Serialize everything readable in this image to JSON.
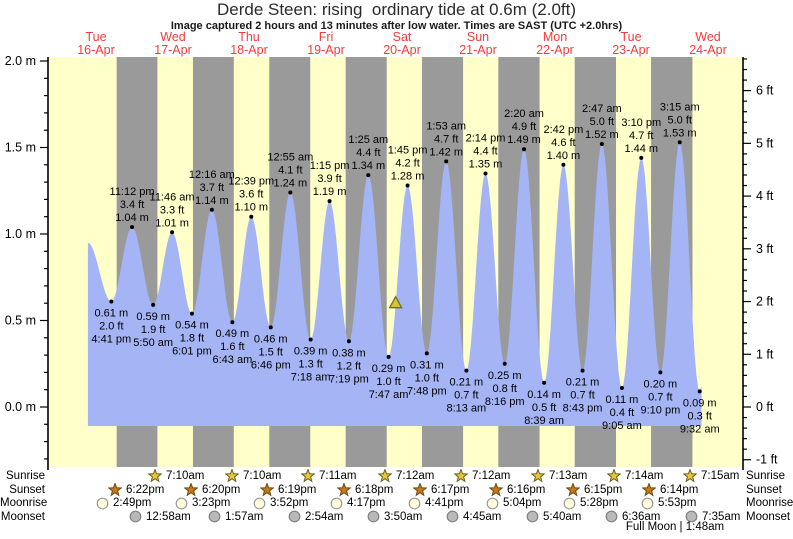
{
  "title": "Derde Steen: rising  ordinary tide at 0.6m (2.0ft)",
  "subtitle": "Image captured 2 hours and 13 minutes after low water. Times are SAST (UTC +2.0hrs)",
  "days": [
    {
      "name": "Tue",
      "date": "16-Apr"
    },
    {
      "name": "Wed",
      "date": "17-Apr"
    },
    {
      "name": "Thu",
      "date": "18-Apr"
    },
    {
      "name": "Fri",
      "date": "19-Apr"
    },
    {
      "name": "Sat",
      "date": "20-Apr"
    },
    {
      "name": "Sun",
      "date": "21-Apr"
    },
    {
      "name": "Mon",
      "date": "22-Apr"
    },
    {
      "name": "Tue",
      "date": "23-Apr"
    },
    {
      "name": "Wed",
      "date": "24-Apr"
    }
  ],
  "y_axis": {
    "left_labels": [
      "2.0 m",
      "1.5 m",
      "1.0 m",
      "0.5 m",
      "0.0 m"
    ],
    "right_labels": [
      "6 ft",
      "5 ft",
      "4 ft",
      "3 ft",
      "2 ft",
      "1 ft",
      "0 ft",
      "-1 ft"
    ]
  },
  "chart_data": {
    "type": "area",
    "series_name": "tide height",
    "units": [
      "m",
      "ft"
    ],
    "ylim_m": [
      -0.35,
      2.02
    ],
    "tides": [
      {
        "kind": "low",
        "day": 0,
        "time": "4:41 pm",
        "m": 0.61,
        "m_label": "0.61 m",
        "ft_label": "2.0 ft"
      },
      {
        "kind": "high",
        "day": 0,
        "time": "11:12 pm",
        "m": 1.04,
        "m_label": "1.04 m",
        "ft_label": "3.4 ft"
      },
      {
        "kind": "low",
        "day": 1,
        "time": "5:50 am",
        "m": 0.59,
        "m_label": "0.59 m",
        "ft_label": "1.9 ft"
      },
      {
        "kind": "high",
        "day": 1,
        "time": "11:46 am",
        "m": 1.01,
        "m_label": "1.01 m",
        "ft_label": "3.3 ft"
      },
      {
        "kind": "low",
        "day": 1,
        "time": "6:01 pm",
        "m": 0.54,
        "m_label": "0.54 m",
        "ft_label": "1.8 ft"
      },
      {
        "kind": "high",
        "day": 2,
        "time": "12:16 am",
        "m": 1.14,
        "m_label": "1.14 m",
        "ft_label": "3.7 ft"
      },
      {
        "kind": "low",
        "day": 2,
        "time": "6:43 am",
        "m": 0.49,
        "m_label": "0.49 m",
        "ft_label": "1.6 ft"
      },
      {
        "kind": "high",
        "day": 2,
        "time": "12:39 pm",
        "m": 1.1,
        "m_label": "1.10 m",
        "ft_label": "3.6 ft"
      },
      {
        "kind": "low",
        "day": 2,
        "time": "6:46 pm",
        "m": 0.46,
        "m_label": "0.46 m",
        "ft_label": "1.5 ft"
      },
      {
        "kind": "high",
        "day": 3,
        "time": "12:55 am",
        "m": 1.24,
        "m_label": "1.24 m",
        "ft_label": "4.1 ft"
      },
      {
        "kind": "low",
        "day": 3,
        "time": "7:18 am",
        "m": 0.39,
        "m_label": "0.39 m",
        "ft_label": "1.3 ft"
      },
      {
        "kind": "high",
        "day": 3,
        "time": "1:15 pm",
        "m": 1.19,
        "m_label": "1.19 m",
        "ft_label": "3.9 ft"
      },
      {
        "kind": "low",
        "day": 3,
        "time": "7:19 pm",
        "m": 0.38,
        "m_label": "0.38 m",
        "ft_label": "1.2 ft"
      },
      {
        "kind": "high",
        "day": 4,
        "time": "1:25 am",
        "m": 1.34,
        "m_label": "1.34 m",
        "ft_label": "4.4 ft"
      },
      {
        "kind": "low",
        "day": 4,
        "time": "7:47 am",
        "m": 0.29,
        "m_label": "0.29 m",
        "ft_label": "1.0 ft"
      },
      {
        "kind": "high",
        "day": 4,
        "time": "1:45 pm",
        "m": 1.28,
        "m_label": "1.28 m",
        "ft_label": "4.2 ft"
      },
      {
        "kind": "low",
        "day": 4,
        "time": "7:48 pm",
        "m": 0.31,
        "m_label": "0.31 m",
        "ft_label": "1.0 ft"
      },
      {
        "kind": "high",
        "day": 5,
        "time": "1:53 am",
        "m": 1.42,
        "m_label": "1.42 m",
        "ft_label": "4.7 ft"
      },
      {
        "kind": "low",
        "day": 5,
        "time": "8:13 am",
        "m": 0.21,
        "m_label": "0.21 m",
        "ft_label": "0.7 ft"
      },
      {
        "kind": "high",
        "day": 5,
        "time": "2:14 pm",
        "m": 1.35,
        "m_label": "1.35 m",
        "ft_label": "4.4 ft"
      },
      {
        "kind": "low",
        "day": 5,
        "time": "8:16 pm",
        "m": 0.25,
        "m_label": "0.25 m",
        "ft_label": "0.8 ft"
      },
      {
        "kind": "high",
        "day": 6,
        "time": "2:20 am",
        "m": 1.49,
        "m_label": "1.49 m",
        "ft_label": "4.9 ft"
      },
      {
        "kind": "low",
        "day": 6,
        "time": "8:39 am",
        "m": 0.14,
        "m_label": "0.14 m",
        "ft_label": "0.5 ft"
      },
      {
        "kind": "high",
        "day": 6,
        "time": "2:42 pm",
        "m": 1.4,
        "m_label": "1.40 m",
        "ft_label": "4.6 ft"
      },
      {
        "kind": "low",
        "day": 6,
        "time": "8:43 pm",
        "m": 0.21,
        "m_label": "0.21 m",
        "ft_label": "0.7 ft"
      },
      {
        "kind": "high",
        "day": 7,
        "time": "2:47 am",
        "m": 1.52,
        "m_label": "1.52 m",
        "ft_label": "5.0 ft"
      },
      {
        "kind": "low",
        "day": 7,
        "time": "9:05 am",
        "m": 0.11,
        "m_label": "0.11 m",
        "ft_label": "0.4 ft"
      },
      {
        "kind": "high",
        "day": 7,
        "time": "3:10 pm",
        "m": 1.44,
        "m_label": "1.44 m",
        "ft_label": "4.7 ft"
      },
      {
        "kind": "low",
        "day": 7,
        "time": "9:10 pm",
        "m": 0.2,
        "m_label": "0.20 m",
        "ft_label": "0.7 ft"
      },
      {
        "kind": "high",
        "day": 8,
        "time": "3:15 am",
        "m": 1.53,
        "m_label": "1.53 m",
        "ft_label": "5.0 ft"
      },
      {
        "kind": "low",
        "day": 8,
        "time": "9:32 am",
        "m": 0.09,
        "m_label": "0.09 m",
        "ft_label": "0.3 ft"
      }
    ],
    "current_marker": {
      "day": 4,
      "time": "10:00 am",
      "m": 0.6
    },
    "curve_start": {
      "day": 0,
      "time": "9:20 am",
      "m": 0.95
    },
    "curve_end": {
      "day": 8,
      "time": "10:05 am"
    }
  },
  "almanac": {
    "rows": [
      {
        "label": "Sunrise",
        "icon": "sunrise-star",
        "entries": [
          {
            "day": 1,
            "time": "7:10am"
          },
          {
            "day": 2,
            "time": "7:10am"
          },
          {
            "day": 3,
            "time": "7:11am"
          },
          {
            "day": 4,
            "time": "7:12am"
          },
          {
            "day": 5,
            "time": "7:12am"
          },
          {
            "day": 6,
            "time": "7:13am"
          },
          {
            "day": 7,
            "time": "7:14am"
          },
          {
            "day": 8,
            "time": "7:15am"
          }
        ]
      },
      {
        "label": "Sunset",
        "icon": "sunset-star",
        "entries": [
          {
            "day": 0,
            "time": "6:22pm"
          },
          {
            "day": 1,
            "time": "6:20pm"
          },
          {
            "day": 2,
            "time": "6:19pm"
          },
          {
            "day": 3,
            "time": "6:18pm"
          },
          {
            "day": 4,
            "time": "6:17pm"
          },
          {
            "day": 5,
            "time": "6:16pm"
          },
          {
            "day": 6,
            "time": "6:15pm"
          },
          {
            "day": 7,
            "time": "6:14pm"
          }
        ]
      },
      {
        "label": "Moonrise",
        "icon": "moonrise-circle",
        "entries": [
          {
            "day": 0,
            "time": "2:49pm"
          },
          {
            "day": 1,
            "time": "3:23pm"
          },
          {
            "day": 2,
            "time": "3:52pm"
          },
          {
            "day": 3,
            "time": "4:17pm"
          },
          {
            "day": 4,
            "time": "4:41pm"
          },
          {
            "day": 5,
            "time": "5:04pm"
          },
          {
            "day": 6,
            "time": "5:28pm"
          },
          {
            "day": 7,
            "time": "5:53pm"
          }
        ]
      },
      {
        "label": "Moonset",
        "icon": "moonset-circle",
        "entries": [
          {
            "day": 1,
            "time": "12:58am"
          },
          {
            "day": 2,
            "time": "1:57am"
          },
          {
            "day": 3,
            "time": "2:54am"
          },
          {
            "day": 4,
            "time": "3:50am"
          },
          {
            "day": 5,
            "time": "4:45am"
          },
          {
            "day": 6,
            "time": "5:40am"
          },
          {
            "day": 7,
            "time": "6:36am"
          },
          {
            "day": 8,
            "time": "7:35am"
          }
        ]
      }
    ],
    "footnote": "Full Moon | 1:48am"
  },
  "colors": {
    "day_band": "#ffffca",
    "night_band": "#9a9a9a",
    "tide_fill": "#a4b4f4",
    "date_red": "#f23c3c",
    "axis": "#000000",
    "marker_fill": "#d2c23c",
    "marker_stroke": "#6f6f23",
    "sunrise_fill": "#e6c83c",
    "sunrise_stroke": "#6b5b1a",
    "sunset_fill": "#c17a1c",
    "sunset_stroke": "#70470e",
    "moonrise_fill": "#ffffdd",
    "moonrise_stroke": "#999999",
    "moonset_fill": "#b9b9b9",
    "moonset_stroke": "#808080"
  }
}
